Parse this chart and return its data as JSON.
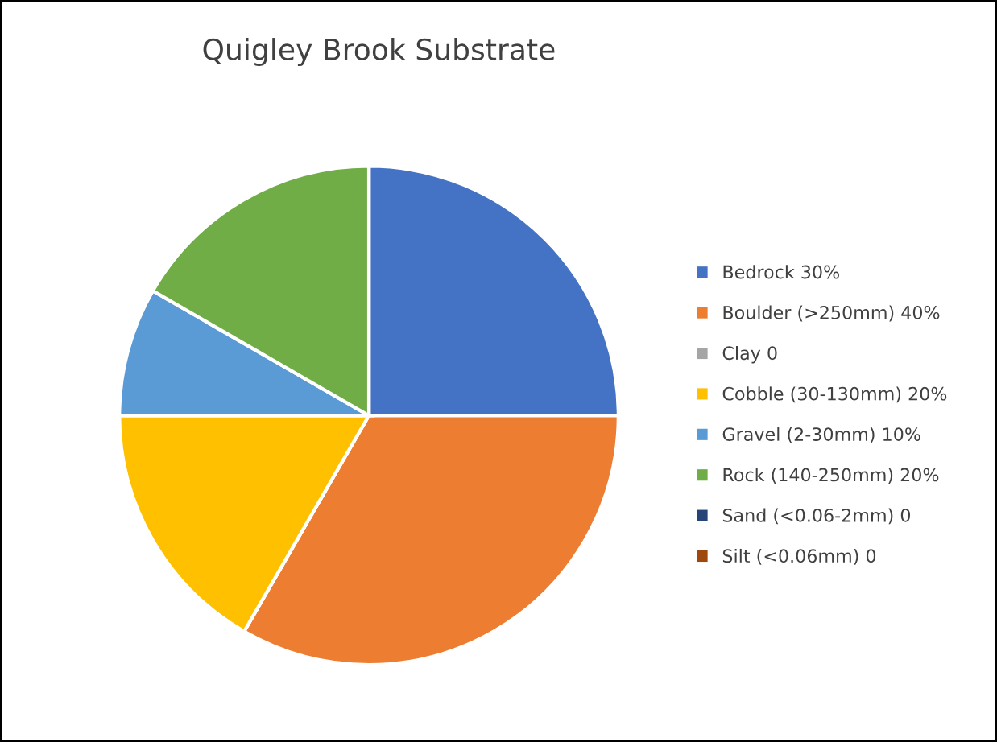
{
  "chart_data": {
    "type": "pie",
    "title": "Quigley Brook Substrate",
    "categories": [
      "Bedrock 30%",
      "Boulder (>250mm) 40%",
      "Clay 0",
      "Cobble (30-130mm) 20%",
      "Gravel (2-30mm) 10%",
      "Rock (140-250mm) 20%",
      "Sand (<0.06-2mm) 0",
      "Silt (<0.06mm) 0"
    ],
    "values": [
      30,
      40,
      0,
      20,
      10,
      20,
      0,
      0
    ],
    "colors": [
      "#4472c4",
      "#ed7d31",
      "#a5a5a5",
      "#ffc000",
      "#5b9bd5",
      "#70ad47",
      "#264478",
      "#9e480e"
    ],
    "legend": "right"
  }
}
